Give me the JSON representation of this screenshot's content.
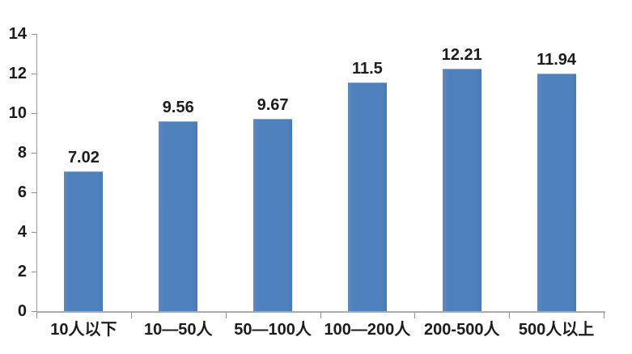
{
  "chart_data": {
    "type": "bar",
    "title": "",
    "xlabel": "",
    "ylabel": "",
    "categories": [
      "10人以下",
      "10—50人",
      "50—100人",
      "100—200人",
      "200-500人",
      "500人以上"
    ],
    "values": [
      7.02,
      9.56,
      9.67,
      11.5,
      12.21,
      11.94
    ],
    "value_labels": [
      "7.02",
      "9.56",
      "9.67",
      "11.5",
      "12.21",
      "11.94"
    ],
    "ylim": [
      0,
      14
    ],
    "yticks": [
      0,
      2,
      4,
      6,
      8,
      10,
      12,
      14
    ],
    "ytick_labels": [
      "0",
      "2",
      "4",
      "6",
      "8",
      "10",
      "12",
      "14"
    ],
    "grid": false,
    "legend": false,
    "bar_color": "#4f81bd"
  },
  "colors": {
    "bar": "#4f81bd",
    "bar_top_highlight": "#86abd6",
    "y_axis_line": "#9e9e9e",
    "x_axis_line": "#ababab",
    "tick": "#8f8f8f",
    "text": "#1c1c1c",
    "background": "#ffffff"
  }
}
